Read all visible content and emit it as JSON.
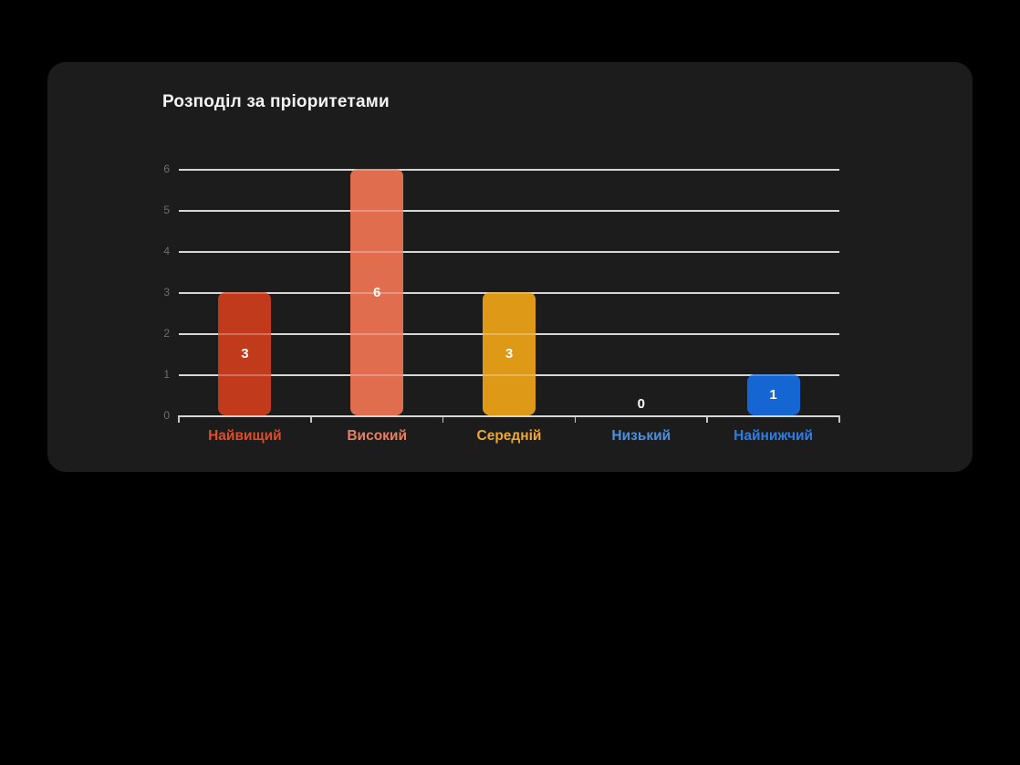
{
  "page": {
    "background_color": "#000000",
    "card_background_color": "#1c1c1c"
  },
  "chart_data": {
    "type": "bar",
    "title": "Розподіл за пріоритетами",
    "categories": [
      "Найвищий",
      "Високий",
      "Середній",
      "Низький",
      "Найнижчий"
    ],
    "values": [
      3,
      6,
      3,
      0,
      1
    ],
    "bar_colors": [
      "#c23a1c",
      "#e06d4e",
      "#de9a16",
      null,
      "#1565d3"
    ],
    "category_label_colors": [
      "#e04b28",
      "#e87e62",
      "#efa72d",
      "#4b8fe2",
      "#2e7de5"
    ],
    "value_label_color": "#ffffff",
    "xlabel": "",
    "ylabel": "",
    "ylim": [
      0,
      6
    ],
    "y_ticks": [
      0,
      1,
      2,
      3,
      4,
      5,
      6
    ],
    "grid": true,
    "grid_color": "#c6c6c6",
    "y_tick_label_color": "#6e6e6e",
    "legend_position": "none"
  }
}
